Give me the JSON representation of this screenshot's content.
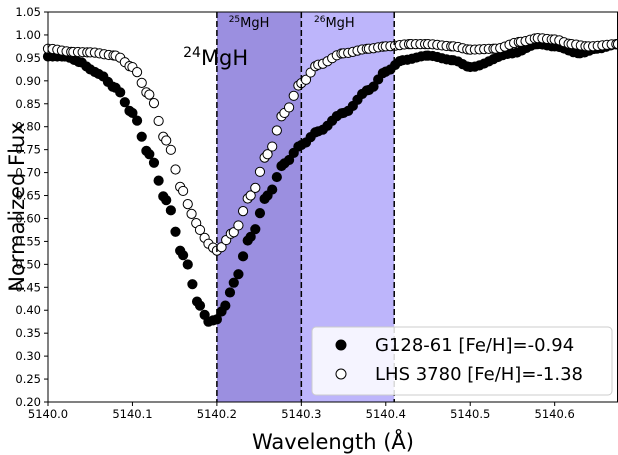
{
  "chart_data": {
    "type": "scatter",
    "xlabel": "Wavelength (Å)",
    "ylabel": "Normalized Flux",
    "xlim": [
      5140.0,
      5140.675
    ],
    "ylim": [
      0.2,
      1.05
    ],
    "x_ticks": [
      {
        "value": 5140.0,
        "label": "5140.0"
      },
      {
        "value": 5140.1,
        "label": "5140.1"
      },
      {
        "value": 5140.2,
        "label": "5140.2"
      },
      {
        "value": 5140.3,
        "label": "5140.3"
      },
      {
        "value": 5140.4,
        "label": "5140.4"
      },
      {
        "value": 5140.5,
        "label": "5140.5"
      },
      {
        "value": 5140.6,
        "label": "5140.6"
      }
    ],
    "y_ticks": [
      {
        "value": 0.2,
        "label": "0.20"
      },
      {
        "value": 0.25,
        "label": "0.25"
      },
      {
        "value": 0.3,
        "label": "0.30"
      },
      {
        "value": 0.35,
        "label": "0.35"
      },
      {
        "value": 0.4,
        "label": "0.40"
      },
      {
        "value": 0.45,
        "label": "0.45"
      },
      {
        "value": 0.5,
        "label": "0.50"
      },
      {
        "value": 0.55,
        "label": "0.55"
      },
      {
        "value": 0.6,
        "label": "0.60"
      },
      {
        "value": 0.65,
        "label": "0.65"
      },
      {
        "value": 0.7,
        "label": "0.70"
      },
      {
        "value": 0.75,
        "label": "0.75"
      },
      {
        "value": 0.8,
        "label": "0.80"
      },
      {
        "value": 0.85,
        "label": "0.85"
      },
      {
        "value": 0.9,
        "label": "0.90"
      },
      {
        "value": 0.95,
        "label": "0.95"
      },
      {
        "value": 1.0,
        "label": "1.00"
      },
      {
        "value": 1.05,
        "label": "1.05"
      }
    ],
    "bands": [
      {
        "x0": 5140.2,
        "x1": 5140.3,
        "color": "#9b8fe0"
      },
      {
        "x0": 5140.3,
        "x1": 5140.41,
        "color": "#bdb5fb"
      }
    ],
    "vlines": [
      5140.2,
      5140.3,
      5140.41
    ],
    "annotations": [
      {
        "mass": "24",
        "name": "MgH",
        "x": 5140.16,
        "y": 0.935,
        "size": "large"
      },
      {
        "mass": "25",
        "name": "MgH",
        "x": 5140.214,
        "y": 1.017,
        "size": "small"
      },
      {
        "mass": "26",
        "name": "MgH",
        "x": 5140.315,
        "y": 1.017,
        "size": "small"
      }
    ],
    "legend": {
      "placement": "lower-right",
      "entries": [
        {
          "label": "G128-61 [Fe/H]=-0.94",
          "marker": "filled"
        },
        {
          "label": "LHS 3780 [Fe/H]=-1.38",
          "marker": "open"
        }
      ]
    },
    "series": [
      {
        "name": "G128-61 [Fe/H]=-0.94",
        "marker": "filled",
        "color": "#000000",
        "x": [
          5140.0,
          5140.02,
          5140.04,
          5140.05,
          5140.06,
          5140.08,
          5140.1,
          5140.12,
          5140.14,
          5140.16,
          5140.18,
          5140.19,
          5140.2,
          5140.21,
          5140.22,
          5140.24,
          5140.26,
          5140.28,
          5140.3,
          5140.32,
          5140.35,
          5140.38,
          5140.4,
          5140.42,
          5140.45,
          5140.48,
          5140.5,
          5140.55,
          5140.58,
          5140.6,
          5140.63,
          5140.65,
          5140.675
        ],
        "values": [
          0.953,
          0.953,
          0.94,
          0.925,
          0.915,
          0.885,
          0.83,
          0.74,
          0.64,
          0.52,
          0.41,
          0.375,
          0.38,
          0.41,
          0.46,
          0.56,
          0.65,
          0.72,
          0.76,
          0.79,
          0.83,
          0.88,
          0.92,
          0.945,
          0.955,
          0.945,
          0.93,
          0.96,
          0.98,
          0.975,
          0.96,
          0.97,
          0.98
        ]
      },
      {
        "name": "LHS 3780 [Fe/H]=-1.38",
        "marker": "open",
        "color": "#000000",
        "x": [
          5140.0,
          5140.03,
          5140.05,
          5140.08,
          5140.1,
          5140.12,
          5140.14,
          5140.16,
          5140.17,
          5140.18,
          5140.19,
          5140.2,
          5140.22,
          5140.24,
          5140.26,
          5140.28,
          5140.3,
          5140.32,
          5140.35,
          5140.38,
          5140.4,
          5140.43,
          5140.45,
          5140.48,
          5140.5,
          5140.53,
          5140.56,
          5140.58,
          5140.6,
          5140.62,
          5140.64,
          5140.675
        ],
        "values": [
          0.97,
          0.963,
          0.962,
          0.955,
          0.93,
          0.87,
          0.77,
          0.66,
          0.61,
          0.575,
          0.545,
          0.53,
          0.57,
          0.65,
          0.74,
          0.83,
          0.895,
          0.935,
          0.96,
          0.97,
          0.975,
          0.98,
          0.98,
          0.975,
          0.968,
          0.97,
          0.985,
          0.993,
          0.99,
          0.98,
          0.975,
          0.98
        ]
      }
    ]
  }
}
